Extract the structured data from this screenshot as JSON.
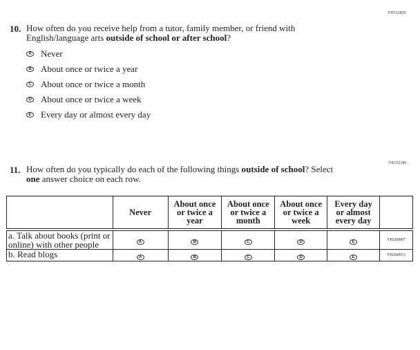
{
  "q10": {
    "id": "VH332820",
    "number": "10.",
    "text_1": "How often do you receive help from a tutor, family member, or friend with",
    "text_2a": "English/language arts ",
    "text_2b": "outside of school or after school",
    "text_2c": "?",
    "options": [
      {
        "letter": "A",
        "label": "Never"
      },
      {
        "letter": "B",
        "label": "About once or twice a year"
      },
      {
        "letter": "C",
        "label": "About once or twice a month"
      },
      {
        "letter": "D",
        "label": "About once or twice a week"
      },
      {
        "letter": "E",
        "label": "Every day or almost every day"
      }
    ]
  },
  "q11": {
    "id": "VR192186",
    "number": "11.",
    "text_1a": "How often do you typically do each of the following things ",
    "text_1b": "outside of school",
    "text_1c": "? Select",
    "text_2a": "one",
    "text_2b": " answer choice on each row.",
    "columns": [
      "Never",
      "About once or twice a year",
      "About once or twice a month",
      "About once or twice a week",
      "Every day or almost every day"
    ],
    "letters": [
      "A",
      "B",
      "C",
      "D",
      "E"
    ],
    "rows": [
      {
        "label": "a.  Talk about books (print or online) with other people",
        "id": "VH260907"
      },
      {
        "label": "b.  Read blogs",
        "id": "VH260913"
      }
    ]
  }
}
